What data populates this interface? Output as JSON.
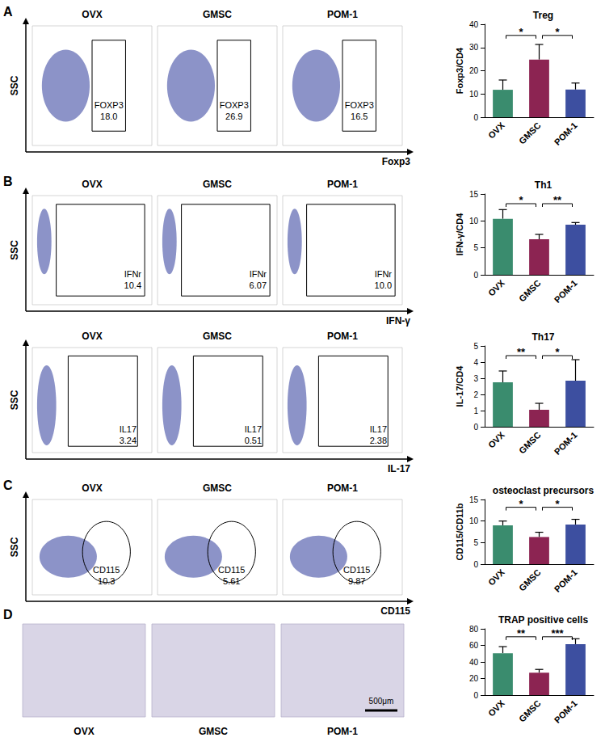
{
  "chart_data": [
    {
      "type": "bar",
      "title": "Treg",
      "y_label": "Foxp3/CD4",
      "categories": [
        "OVX",
        "GMSC",
        "POM-1"
      ],
      "values": [
        11.8,
        24.8,
        11.9
      ],
      "error": [
        4.2,
        6.5,
        2.8
      ],
      "colors": [
        "#3a8c6e",
        "#8c2452",
        "#3d4fa0"
      ],
      "ylim": [
        0,
        40
      ],
      "yticks": [
        0,
        10,
        20,
        30,
        40
      ],
      "grid": false,
      "significance": [
        {
          "from": "OVX",
          "to": "GMSC",
          "label": "*"
        },
        {
          "from": "GMSC",
          "to": "POM-1",
          "label": "*"
        }
      ]
    },
    {
      "type": "bar",
      "title": "Th1",
      "y_label": "IFN-γ/CD4",
      "categories": [
        "OVX",
        "GMSC",
        "POM-1"
      ],
      "values": [
        10.4,
        6.6,
        9.3
      ],
      "error": [
        1.7,
        0.9,
        0.4
      ],
      "colors": [
        "#3a8c6e",
        "#8c2452",
        "#3d4fa0"
      ],
      "ylim": [
        0,
        15
      ],
      "yticks": [
        0,
        5,
        10,
        15
      ],
      "grid": false,
      "significance": [
        {
          "from": "OVX",
          "to": "GMSC",
          "label": "*"
        },
        {
          "from": "GMSC",
          "to": "POM-1",
          "label": "**"
        }
      ]
    },
    {
      "type": "bar",
      "title": "Th17",
      "y_label": "IL-17/CD4",
      "categories": [
        "OVX",
        "GMSC",
        "POM-1"
      ],
      "values": [
        2.75,
        1.05,
        2.85
      ],
      "error": [
        0.7,
        0.4,
        1.3
      ],
      "colors": [
        "#3a8c6e",
        "#8c2452",
        "#3d4fa0"
      ],
      "ylim": [
        0,
        5
      ],
      "yticks": [
        0,
        1,
        2,
        3,
        4,
        5
      ],
      "grid": false,
      "significance": [
        {
          "from": "OVX",
          "to": "GMSC",
          "label": "**"
        },
        {
          "from": "GMSC",
          "to": "POM-1",
          "label": "*"
        }
      ]
    },
    {
      "type": "bar",
      "title": "osteoclast precursors",
      "y_label": "CD115/CD11b",
      "categories": [
        "OVX",
        "GMSC",
        "POM-1"
      ],
      "values": [
        9.0,
        6.3,
        9.2
      ],
      "error": [
        1.0,
        1.1,
        1.2
      ],
      "colors": [
        "#3a8c6e",
        "#8c2452",
        "#3d4fa0"
      ],
      "ylim": [
        0,
        15
      ],
      "yticks": [
        0,
        5,
        10,
        15
      ],
      "grid": false,
      "significance": [
        {
          "from": "OVX",
          "to": "GMSC",
          "label": "*"
        },
        {
          "from": "GMSC",
          "to": "POM-1",
          "label": "*"
        }
      ]
    },
    {
      "type": "bar",
      "title": "TRAP positive cells",
      "categories": [
        "OVX",
        "GMSC",
        "POM-1"
      ],
      "values": [
        50.5,
        27,
        61.5
      ],
      "error": [
        8,
        4,
        6.5
      ],
      "colors": [
        "#3a8c6e",
        "#8c2452",
        "#3d4fa0"
      ],
      "ylim": [
        0,
        80
      ],
      "yticks": [
        0,
        20,
        40,
        60,
        80
      ],
      "grid": false,
      "significance": [
        {
          "from": "OVX",
          "to": "GMSC",
          "label": "**"
        },
        {
          "from": "GMSC",
          "to": "POM-1",
          "label": "***"
        }
      ]
    }
  ],
  "flow_cytometry": [
    {
      "panel": "A",
      "y_label": "SSC",
      "x_label": "Foxp3",
      "plots": [
        {
          "title": "OVX",
          "gate_label": "FOXP3",
          "gate_value": "18.0"
        },
        {
          "title": "GMSC",
          "gate_label": "FOXP3",
          "gate_value": "26.9"
        },
        {
          "title": "POM-1",
          "gate_label": "FOXP3",
          "gate_value": "16.5"
        }
      ]
    },
    {
      "panel": "B",
      "y_label": "SSC",
      "x_label": "IFN-γ",
      "plots": [
        {
          "title": "OVX",
          "gate_label": "IFNr",
          "gate_value": "10.4"
        },
        {
          "title": "GMSC",
          "gate_label": "IFNr",
          "gate_value": "6.07"
        },
        {
          "title": "POM-1",
          "gate_label": "IFNr",
          "gate_value": "10.0"
        }
      ]
    },
    {
      "y_label": "SSC",
      "x_label": "IL-17",
      "plots": [
        {
          "title": "OVX",
          "gate_label": "IL17",
          "gate_value": "3.24"
        },
        {
          "title": "GMSC",
          "gate_label": "IL17",
          "gate_value": "0.51"
        },
        {
          "title": "POM-1",
          "gate_label": "IL17",
          "gate_value": "2.38"
        }
      ]
    },
    {
      "panel": "C",
      "y_label": "SSC",
      "x_label": "CD115",
      "plots": [
        {
          "title": "OVX",
          "gate_label": "CD115",
          "gate_value": "10.3"
        },
        {
          "title": "GMSC",
          "gate_label": "CD115",
          "gate_value": "5.61"
        },
        {
          "title": "POM-1",
          "gate_label": "CD115",
          "gate_value": "9.87"
        }
      ]
    }
  ],
  "image_panel": {
    "panel": "D",
    "images": [
      "OVX",
      "GMSC",
      "POM-1"
    ],
    "scale_bar": "500μm"
  }
}
